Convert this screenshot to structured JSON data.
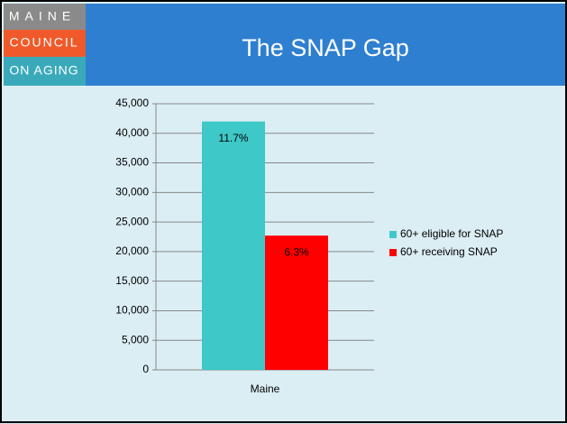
{
  "logo": [
    "MAINE",
    "COUNCIL",
    "ON AGING"
  ],
  "chart_data": {
    "type": "bar",
    "title": "The SNAP Gap",
    "categories": [
      "Maine"
    ],
    "series": [
      {
        "name": "60+ eligible for SNAP",
        "color": "#3ec8c8",
        "values": [
          42000
        ],
        "point_labels": [
          "11.7%"
        ]
      },
      {
        "name": "60+ receiving SNAP",
        "color": "#ff0000",
        "values": [
          22700
        ],
        "point_labels": [
          "6.3%"
        ]
      }
    ],
    "ylim": [
      0,
      45000
    ],
    "yticks": [
      0,
      {
        "value": 5000,
        "label": "5,000"
      },
      {
        "value": 10000,
        "label": "10,000"
      },
      {
        "value": 15000,
        "label": "15,000"
      },
      {
        "value": 20000,
        "label": "20,000"
      },
      {
        "value": 25000,
        "label": "25,000"
      },
      {
        "value": 30000,
        "label": "30,000"
      },
      {
        "value": 35000,
        "label": "35,000"
      },
      {
        "value": 40000,
        "label": "40,000"
      },
      {
        "value": 45000,
        "label": "45,000"
      }
    ],
    "grid": true,
    "legend": "right"
  }
}
